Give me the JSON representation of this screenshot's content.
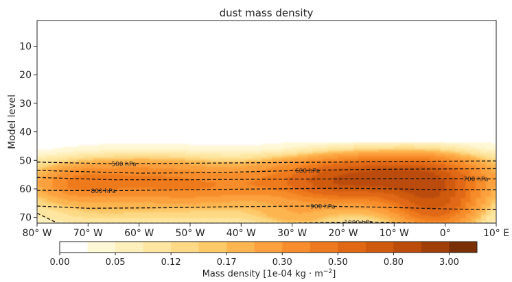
{
  "chart_data": {
    "type": "heatmap",
    "title": "dust mass density",
    "ylabel": "Model level",
    "xlabel": "",
    "x_ticks": [
      "80° W",
      "70° W",
      "60° W",
      "50° W",
      "40° W",
      "30° W",
      "20° W",
      "10° W",
      "0°",
      "10° E"
    ],
    "x_range_deg": [
      -80,
      10
    ],
    "y_ticks": [
      "10",
      "20",
      "30",
      "40",
      "50",
      "60",
      "70"
    ],
    "y_range_levels": [
      72,
      1
    ],
    "colorbar": {
      "label": "Mass density [1e-04 kg · m",
      "label_exp": "−2",
      "label_end": "]",
      "tick_labels": [
        "0.00",
        "0.05",
        "0.12",
        "0.17",
        "0.30",
        "0.50",
        "0.80",
        "3.00"
      ],
      "bounds": [
        0.0,
        0.02,
        0.05,
        0.08,
        0.12,
        0.15,
        0.17,
        0.22,
        0.3,
        0.4,
        0.5,
        0.65,
        0.8,
        1.5,
        3.0,
        4.5
      ],
      "colors": [
        "#ffffff",
        "#fff7d5",
        "#ffefbb",
        "#fee6a1",
        "#fdd985",
        "#fdc969",
        "#fdb54f",
        "#fca13d",
        "#f78d2c",
        "#ee7a1f",
        "#e06815",
        "#cf5a0e",
        "#bb4c09",
        "#a03f07",
        "#7a2f05"
      ]
    },
    "blobs": [
      {
        "lon": -60,
        "level": 56,
        "wlon": 14,
        "wlev": 5.0,
        "value": 0.33
      },
      {
        "lon": -48,
        "level": 60,
        "wlon": 8,
        "wlev": 3.5,
        "value": 0.12
      },
      {
        "lon": -72,
        "level": 58,
        "wlon": 5,
        "wlev": 3.5,
        "value": 0.18
      },
      {
        "lon": -66,
        "level": 63,
        "wlon": 18,
        "wlev": 4.5,
        "value": 0.09
      },
      {
        "lon": -38,
        "level": 58,
        "wlon": 5,
        "wlev": 3.0,
        "value": 0.07
      },
      {
        "lon": -14,
        "level": 55,
        "wlon": 12,
        "wlev": 4.5,
        "value": 0.62
      },
      {
        "lon": -22,
        "level": 59,
        "wlon": 8,
        "wlev": 4.0,
        "value": 0.28
      },
      {
        "lon": -4,
        "level": 60,
        "wlon": 6,
        "wlev": 6.5,
        "value": 0.4
      },
      {
        "lon": -2,
        "level": 67,
        "wlon": 5,
        "wlev": 6.0,
        "value": 0.32
      },
      {
        "lon": -20,
        "level": 64,
        "wlon": 16,
        "wlev": 6.0,
        "value": 0.14
      },
      {
        "lon": -12,
        "level": 49,
        "wlon": 14,
        "wlev": 3.5,
        "value": 0.06
      },
      {
        "lon": -30,
        "level": 70,
        "wlon": 5,
        "wlev": 3.0,
        "value": 0.08
      },
      {
        "lon": -50,
        "level": 70,
        "wlon": 12,
        "wlev": 3.5,
        "value": 0.05
      },
      {
        "lon": -70,
        "level": 69,
        "wlon": 8,
        "wlev": 3.5,
        "value": 0.05
      },
      {
        "lon": 7,
        "level": 58,
        "wlon": 5,
        "wlev": 6.0,
        "value": 0.07
      },
      {
        "lon": -33,
        "level": 53,
        "wlon": 6,
        "wlev": 3.0,
        "value": 0.04
      }
    ],
    "pressure_contours": [
      {
        "label": "500 hPa",
        "label_lon": -63,
        "points": [
          [
            -80,
            50.6
          ],
          [
            -65,
            51.2
          ],
          [
            -50,
            51.0
          ],
          [
            -35,
            50.8
          ],
          [
            -20,
            50.6
          ],
          [
            -10,
            50.4
          ],
          [
            0,
            50.3
          ],
          [
            10,
            50.2
          ]
        ]
      },
      {
        "label": "600 hPa",
        "label_lon": -27,
        "points": [
          [
            -80,
            53.5
          ],
          [
            -60,
            54.5
          ],
          [
            -45,
            54.3
          ],
          [
            -30,
            53.6
          ],
          [
            -20,
            53.3
          ],
          [
            -10,
            53.1
          ],
          [
            0,
            53.0
          ],
          [
            10,
            52.9
          ]
        ]
      },
      {
        "label": "700 hPa",
        "label_lon": 6,
        "points": [
          [
            -80,
            56.0
          ],
          [
            -65,
            56.8
          ],
          [
            -50,
            56.8
          ],
          [
            -35,
            56.6
          ],
          [
            -20,
            56.5
          ],
          [
            -10,
            56.4
          ],
          [
            0,
            56.4
          ],
          [
            10,
            56.5
          ]
        ]
      },
      {
        "label": "800 hPa",
        "label_lon": -67,
        "points": [
          [
            -80,
            60.5
          ],
          [
            -65,
            60.6
          ],
          [
            -50,
            60.3
          ],
          [
            -35,
            60.0
          ],
          [
            -20,
            59.8
          ],
          [
            -10,
            60.0
          ],
          [
            0,
            60.3
          ],
          [
            10,
            60.3
          ]
        ]
      },
      {
        "label": "900 hPa",
        "label_lon": -24,
        "points": [
          [
            -80,
            66.0
          ],
          [
            -70,
            66.8
          ],
          [
            -55,
            66.6
          ],
          [
            -40,
            66.2
          ],
          [
            -25,
            66.0
          ],
          [
            -10,
            66.5
          ],
          [
            0,
            67.0
          ],
          [
            10,
            67.3
          ]
        ]
      },
      {
        "label": "1000 hPa",
        "label_lon": -17,
        "points": [
          [
            -80,
            68.5
          ],
          [
            -76,
            72.0
          ],
          [
            -30,
            72.0
          ],
          [
            -25,
            71.8
          ],
          [
            -15,
            71.6
          ],
          [
            -5,
            72.0
          ],
          [
            10,
            72.0
          ]
        ]
      }
    ]
  }
}
